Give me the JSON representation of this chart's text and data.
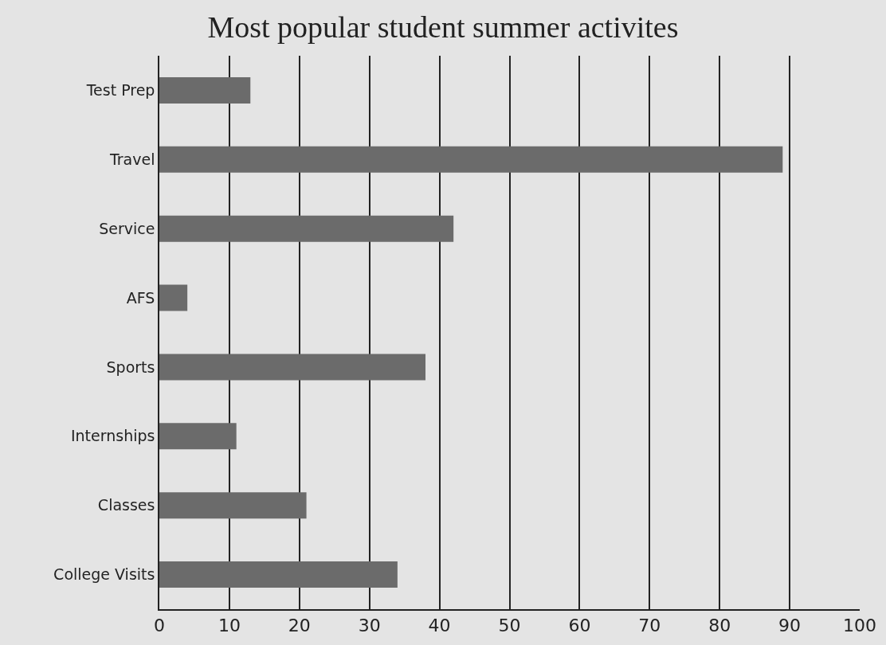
{
  "chart_data": {
    "type": "bar",
    "orientation": "horizontal",
    "title": "Most popular student summer activites",
    "categories": [
      "Test Prep",
      "Travel",
      "Service",
      "AFS",
      "Sports",
      "Internships",
      "Classes",
      "College Visits"
    ],
    "values": [
      13,
      89,
      42,
      4,
      38,
      11,
      21,
      34
    ],
    "color": "#6b6b6b",
    "xlim": [
      0,
      100
    ],
    "xticks": [
      0,
      10,
      20,
      30,
      40,
      50,
      60,
      70,
      80,
      90,
      100
    ],
    "grid": "x"
  }
}
